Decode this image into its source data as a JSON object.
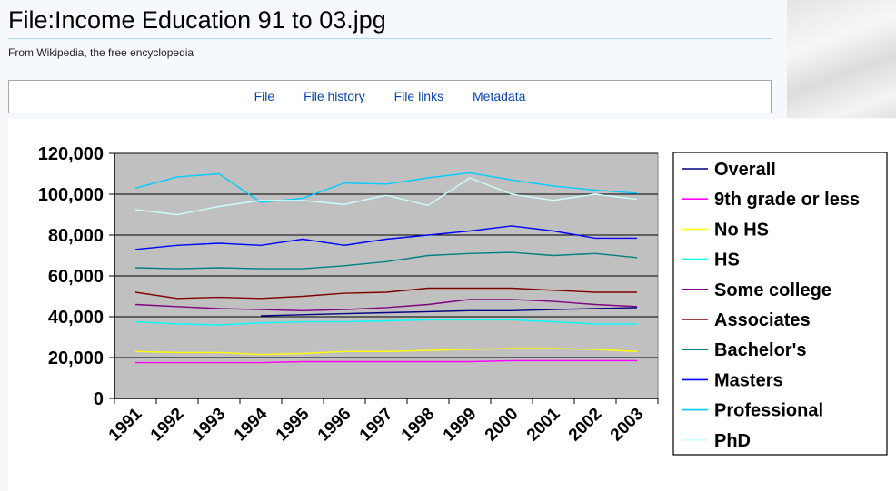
{
  "header": {
    "title": "File:Income Education 91 to 03.jpg",
    "subtitle": "From Wikipedia, the free encyclopedia"
  },
  "tabs": [
    {
      "label": "File"
    },
    {
      "label": "File history"
    },
    {
      "label": "File links"
    },
    {
      "label": "Metadata"
    }
  ],
  "chart_data": {
    "type": "line",
    "title": "",
    "xlabel": "",
    "ylabel": "",
    "ylim": [
      0,
      120000
    ],
    "yticks": [
      0,
      20000,
      40000,
      60000,
      80000,
      100000,
      120000
    ],
    "ytick_labels": [
      "0",
      "20,000",
      "40,000",
      "60,000",
      "80,000",
      "100,000",
      "120,000"
    ],
    "categories": [
      "1991",
      "1992",
      "1993",
      "1994",
      "1995",
      "1996",
      "1997",
      "1998",
      "1999",
      "2000",
      "2001",
      "2002",
      "2003"
    ],
    "grid": true,
    "legend_position": "right",
    "series": [
      {
        "name": "Overall",
        "color": "#000080",
        "values": [
          null,
          null,
          null,
          40500,
          41000,
          41500,
          42000,
          42500,
          43000,
          43000,
          43500,
          44000,
          44500
        ]
      },
      {
        "name": "9th grade or less",
        "color": "#ff00ff",
        "values": [
          17500,
          17500,
          17500,
          17500,
          18000,
          18000,
          18000,
          18000,
          18000,
          18500,
          18500,
          18500,
          18500
        ]
      },
      {
        "name": "No HS",
        "color": "#ffff00",
        "values": [
          23000,
          22500,
          22500,
          21500,
          22000,
          23000,
          23000,
          23500,
          24000,
          24500,
          24500,
          24000,
          23000
        ]
      },
      {
        "name": "HS",
        "color": "#00ffff",
        "values": [
          37500,
          36500,
          36000,
          37000,
          37500,
          37500,
          38000,
          38500,
          38500,
          38500,
          37500,
          36500,
          36500
        ]
      },
      {
        "name": "Some college",
        "color": "#800080",
        "values": [
          46000,
          45000,
          44000,
          43500,
          43000,
          43500,
          44500,
          46000,
          48500,
          48500,
          47500,
          46000,
          45000
        ]
      },
      {
        "name": "Associates",
        "color": "#800000",
        "values": [
          52000,
          49000,
          49500,
          49000,
          50000,
          51500,
          52000,
          54000,
          54000,
          54000,
          53000,
          52000,
          52000
        ]
      },
      {
        "name": "Bachelor's",
        "color": "#008080",
        "values": [
          64000,
          63500,
          64000,
          63500,
          63500,
          65000,
          67000,
          70000,
          71000,
          71500,
          70000,
          71000,
          69000
        ]
      },
      {
        "name": "Masters",
        "color": "#0000ff",
        "values": [
          73000,
          75000,
          76000,
          75000,
          78000,
          75000,
          78000,
          80000,
          82000,
          84500,
          82000,
          78500,
          78500
        ]
      },
      {
        "name": "Professional",
        "color": "#00ccff",
        "values": [
          103000,
          108500,
          110000,
          96000,
          98000,
          105500,
          105000,
          108000,
          110500,
          107000,
          104000,
          102000,
          100500
        ]
      },
      {
        "name": "PhD",
        "color": "#ccffff",
        "values": [
          92500,
          90000,
          94000,
          97000,
          97000,
          95000,
          99500,
          94500,
          108000,
          100000,
          97000,
          100000,
          97500
        ]
      }
    ]
  }
}
